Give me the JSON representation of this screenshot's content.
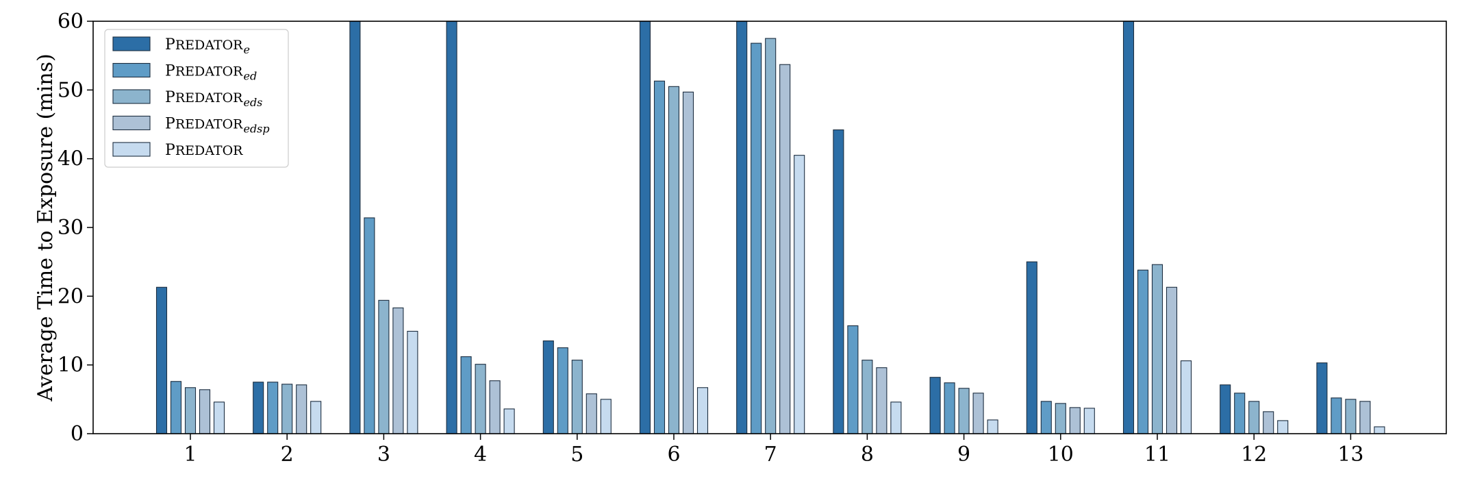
{
  "chart_data": {
    "type": "bar",
    "title": "",
    "xlabel": "",
    "ylabel": "Average Time to Exposure (mins)",
    "ylim": [
      0,
      60
    ],
    "yticks": [
      0,
      10,
      20,
      30,
      40,
      50,
      60
    ],
    "grid": false,
    "legend_position": "top-left",
    "categories": [
      "1",
      "2",
      "3",
      "4",
      "5",
      "6",
      "7",
      "8",
      "9",
      "10",
      "11",
      "12",
      "13"
    ],
    "series": [
      {
        "name": "Predator",
        "subscript": "e",
        "color": "#2c6ea6",
        "values": [
          21.3,
          7.5,
          60,
          60,
          13.5,
          60,
          60,
          44.2,
          8.2,
          25.0,
          60,
          7.1,
          10.3
        ]
      },
      {
        "name": "Predator",
        "subscript": "ed",
        "color": "#5f9cc6",
        "values": [
          7.6,
          7.5,
          31.4,
          11.2,
          12.5,
          51.3,
          56.8,
          15.7,
          7.4,
          4.7,
          23.8,
          5.9,
          5.2
        ]
      },
      {
        "name": "Predator",
        "subscript": "eds",
        "color": "#8cb4cd",
        "values": [
          6.7,
          7.2,
          19.4,
          10.1,
          10.7,
          50.5,
          57.5,
          10.7,
          6.6,
          4.4,
          24.6,
          4.7,
          5.0
        ]
      },
      {
        "name": "Predator",
        "subscript": "edsp",
        "color": "#adc1d6",
        "values": [
          6.4,
          7.1,
          18.3,
          7.7,
          5.8,
          49.7,
          53.7,
          9.6,
          5.9,
          3.8,
          21.3,
          3.2,
          4.7
        ]
      },
      {
        "name": "Predator",
        "subscript": "",
        "color": "#c6dbef",
        "values": [
          4.6,
          4.7,
          14.9,
          3.6,
          5.0,
          6.7,
          40.5,
          4.6,
          2.0,
          3.7,
          10.6,
          1.9,
          1.0
        ]
      }
    ]
  }
}
